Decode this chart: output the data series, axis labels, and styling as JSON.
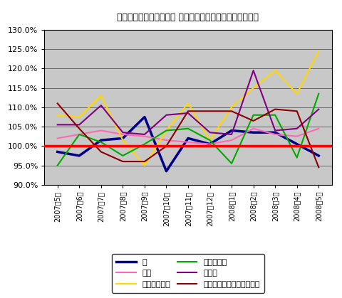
{
  "title": "二人以上の世帯における 月別平均購入金額（前年同月比）",
  "x_labels": [
    "2007年5月",
    "2007年6月",
    "2007年7月",
    "2007年8月",
    "2007年9月",
    "2007年10月",
    "2007年11月",
    "2007年12月",
    "2008年1月",
    "2008年2月",
    "2008年3月",
    "2008年4月",
    "2008年5月"
  ],
  "ylim": [
    90.0,
    130.0
  ],
  "yticks": [
    90.0,
    95.0,
    100.0,
    105.0,
    110.0,
    115.0,
    120.0,
    125.0,
    130.0
  ],
  "series": {
    "米": {
      "color": "#00008B",
      "linewidth": 2.5,
      "values": [
        98.5,
        97.5,
        101.5,
        102.0,
        107.5,
        93.5,
        102.0,
        100.5,
        104.0,
        103.5,
        103.5,
        100.5,
        97.5
      ]
    },
    "パン": {
      "color": "#FF69B4",
      "linewidth": 1.5,
      "values": [
        102.0,
        103.0,
        104.0,
        103.0,
        102.5,
        101.5,
        101.0,
        100.5,
        101.5,
        104.5,
        103.0,
        102.5,
        104.5
      ]
    },
    "スパゲッティ": {
      "color": "#FFD700",
      "linewidth": 1.5,
      "values": [
        108.0,
        107.5,
        113.0,
        101.5,
        95.0,
        104.0,
        111.0,
        101.5,
        110.0,
        115.0,
        119.5,
        113.5,
        124.5
      ]
    },
    "カップめん": {
      "color": "#00AA00",
      "linewidth": 1.5,
      "values": [
        95.0,
        103.0,
        101.0,
        97.5,
        100.5,
        104.0,
        104.5,
        101.5,
        95.5,
        108.0,
        108.0,
        97.0,
        113.5
      ]
    },
    "チーズ": {
      "color": "#800080",
      "linewidth": 1.5,
      "values": [
        105.5,
        105.5,
        110.5,
        103.5,
        103.0,
        108.0,
        108.5,
        103.5,
        103.0,
        119.5,
        104.0,
        104.5,
        109.5
      ]
    },
    "マヨネーズ・ドレッシング": {
      "color": "#8B0000",
      "linewidth": 1.5,
      "values": [
        111.0,
        104.5,
        98.5,
        96.0,
        96.0,
        100.0,
        109.0,
        109.0,
        109.0,
        106.5,
        109.5,
        109.0,
        94.5
      ]
    }
  },
  "baseline": 100.0,
  "baseline_color": "#FF0000",
  "plot_area_bg": "#C8C8C8",
  "legend_order": [
    "米",
    "パン",
    "スパゲッティ",
    "カップめん",
    "チーズ",
    "マヨネーズ・ドレッシング"
  ]
}
